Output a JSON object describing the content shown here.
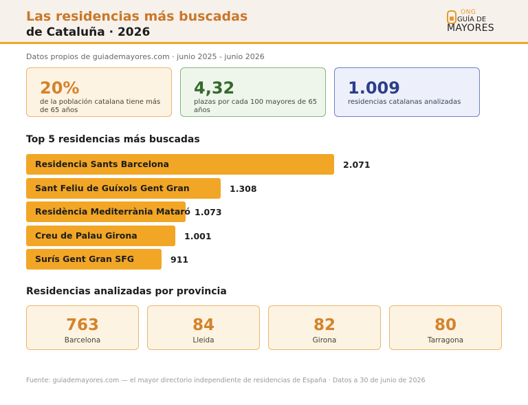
{
  "header": {
    "title_line1": "Las residencias más buscadas",
    "title_line2": "de Cataluña · 2026"
  },
  "logo": {
    "ong": "ONG",
    "guia": "GUÍA DE",
    "mayores": "MAYORES",
    "icon": "house-icon"
  },
  "subtitle": "Datos propios de guiademayores.com · junio 2025 - junio 2026",
  "kpis": [
    {
      "value": "20%",
      "desc": "de la población catalana tiene más de 65 años"
    },
    {
      "value": "4,32",
      "desc": "plazas por cada 100 mayores de 65 años"
    },
    {
      "value": "1.009",
      "desc": "residencias catalanas analizadas"
    }
  ],
  "section_top": "Top 5 residencias más buscadas",
  "section_prov": "Residencias analizadas por provincia",
  "footer": "Fuente: guiademayores.com — el mayor directorio independiente de residencias de España · Datos a 30 de junio de 2026",
  "colors": {
    "accent": "#f2a626",
    "title": "#c9772a",
    "green": "#356a2b",
    "blue": "#2c3e8a"
  },
  "chart_data": [
    {
      "type": "bar",
      "orientation": "horizontal",
      "title": "Top 5 residencias más buscadas",
      "categories": [
        "Residencia Sants Barcelona",
        "Sant Feliu de Guíxols Gent Gran",
        "Residència Mediterrània Mataró",
        "Creu de Palau Girona",
        "Surís Gent Gran SFG"
      ],
      "values": [
        2071,
        1308,
        1073,
        1001,
        911
      ],
      "value_labels": [
        "2.071",
        "1.308",
        "1.073",
        "1.001",
        "911"
      ]
    },
    {
      "type": "table",
      "title": "Residencias analizadas por provincia",
      "categories": [
        "Barcelona",
        "Lleida",
        "Girona",
        "Tarragona"
      ],
      "values": [
        763,
        84,
        82,
        80
      ]
    }
  ]
}
